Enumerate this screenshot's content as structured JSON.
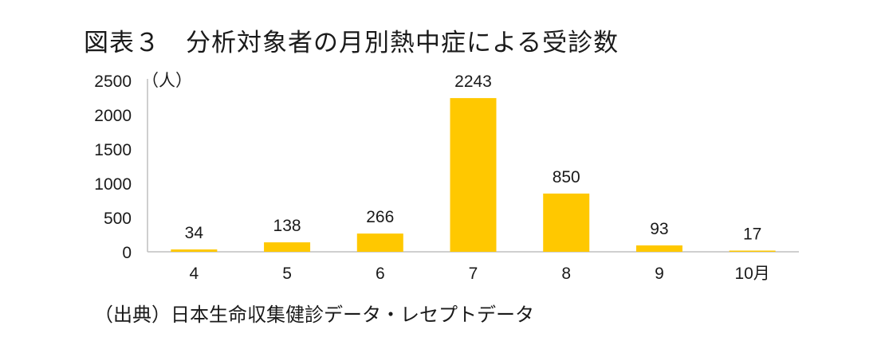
{
  "title": "図表３　分析対象者の月別熱中症による受診数",
  "source": "（出典）日本生命収集健診データ・レセプトデータ",
  "colors": {
    "bar": "#FFC800",
    "axis": "#BFBFBF",
    "text": "#1a1a1a"
  },
  "chart_data": {
    "type": "bar",
    "title": "図表３　分析対象者の月別熱中症による受診数",
    "categories": [
      "4",
      "5",
      "6",
      "7",
      "8",
      "9",
      "10月"
    ],
    "values": [
      34,
      138,
      266,
      2243,
      850,
      93,
      17
    ],
    "data_labels": [
      "34",
      "138",
      "266",
      "2243",
      "850",
      "93",
      "17"
    ],
    "ylabel": "（人）",
    "xlabel": "",
    "ylim": [
      0,
      2500
    ],
    "yticks": [
      0,
      500,
      1000,
      1500,
      2000,
      2500
    ],
    "grid": false,
    "legend": "none"
  }
}
